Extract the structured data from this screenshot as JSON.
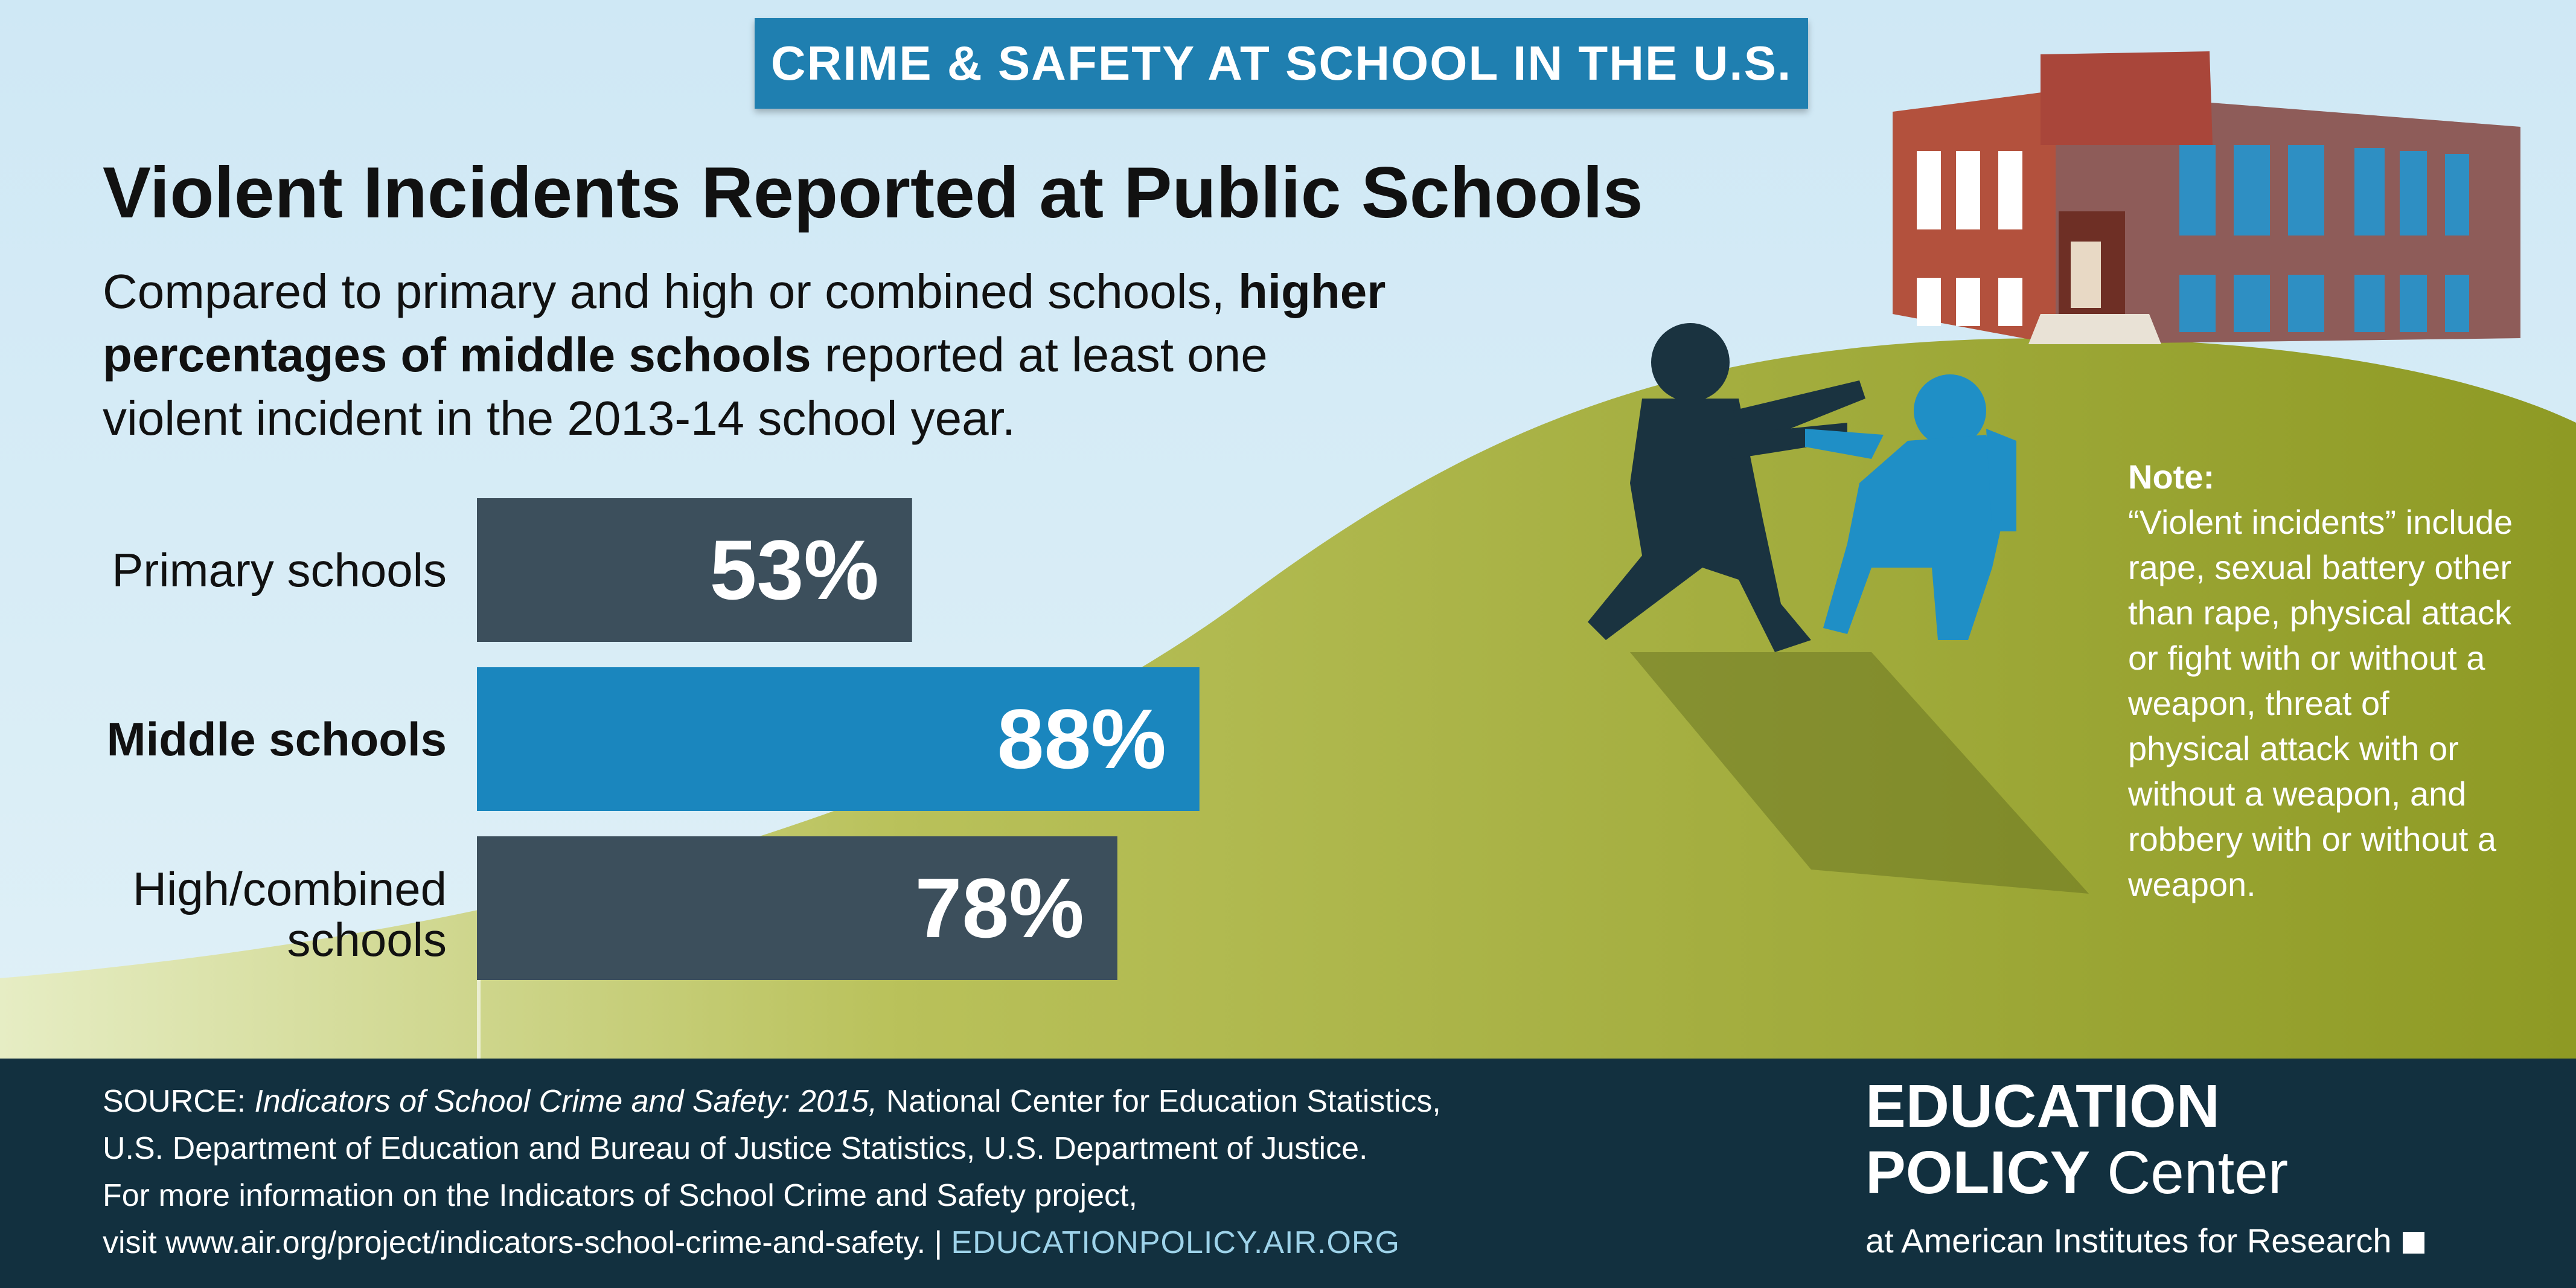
{
  "banner": "CRIME & SAFETY AT SCHOOL IN THE U.S.",
  "title": "Violent Incidents Reported at Public Schools",
  "subtitle": {
    "part1": "Compared to primary and high or combined schools,",
    "bold": "higher percentages of middle schools",
    "part2": "reported at least one violent incident in the 2013-14 school year."
  },
  "chart_data": {
    "type": "bar",
    "orientation": "horizontal",
    "categories": [
      "Primary schools",
      "Middle schools",
      "High/combined schools"
    ],
    "category_lines": [
      [
        "Primary schools"
      ],
      [
        "Middle schools"
      ],
      [
        "High/combined",
        "schools"
      ]
    ],
    "values": [
      53,
      88,
      78
    ],
    "value_labels": [
      "53%",
      "88%",
      "78%"
    ],
    "highlight": "Middle schools",
    "xlim": [
      0,
      100
    ],
    "colors": {
      "default": "#3c4f5c",
      "highlight": "#1a86be"
    }
  },
  "note": {
    "title": "Note:",
    "text": "“Violent incidents” include rape, sexual battery other than rape, physical attack or fight with or without a weapon, threat of physical attack with or without a weapon, and robbery with or without a weapon."
  },
  "source": {
    "label": "SOURCE:",
    "publication": "Indicators of School Crime and Safety: 2015,",
    "line1_rest": "National Center for Education Statistics,",
    "line2": "U.S. Department of Education and Bureau of Justice Statistics, U.S. Department of Justice.",
    "line3": "For more information on the Indicators of School Crime and Safety project,",
    "line4": "visit www.air.org/project/indicators-school-crime-and-safety.",
    "separator": "|",
    "link": "EDUCATIONPOLICY.AIR.ORG"
  },
  "logo": {
    "line1": "EDUCATION",
    "line2_bold": "POLICY",
    "line2_rest": "Center",
    "line3": "at American Institutes for Research"
  },
  "colors": {
    "sky": "#d6ecf6",
    "hill": "#9aa52a",
    "banner": "#1f7fb0",
    "footer": "#12303f",
    "bar_default": "#3c4f5c",
    "bar_highlight": "#1a86be",
    "brick": "#b3513d"
  }
}
